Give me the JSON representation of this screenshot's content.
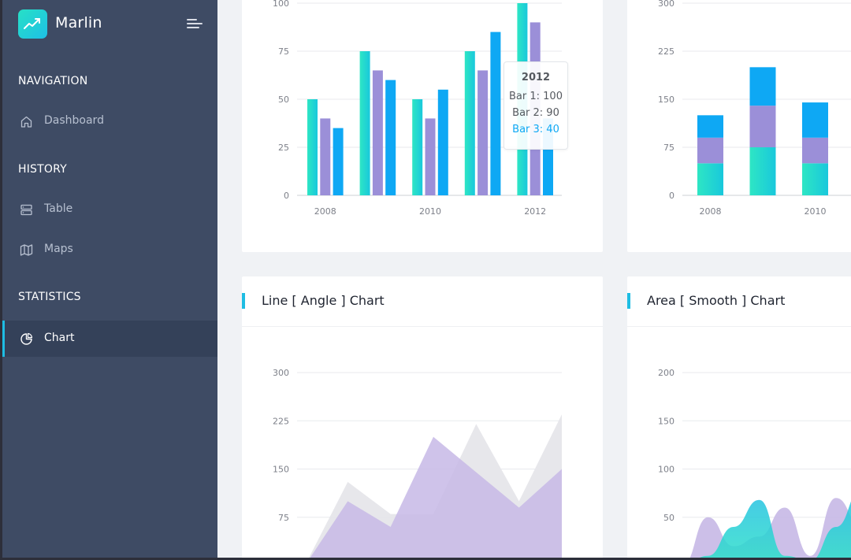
{
  "app": {
    "title": "Marlin"
  },
  "sidebar": {
    "sections": [
      {
        "title": "NAVIGATION",
        "items": [
          {
            "label": "Dashboard",
            "icon": "home-icon"
          }
        ]
      },
      {
        "title": "HISTORY",
        "items": [
          {
            "label": "Table",
            "icon": "table-icon"
          },
          {
            "label": "Maps",
            "icon": "map-icon"
          }
        ]
      },
      {
        "title": "STATISTICS",
        "items": [
          {
            "label": "Chart",
            "icon": "pie-chart-icon",
            "active": true
          }
        ]
      }
    ]
  },
  "colors": {
    "sidebar": "#3e4b64",
    "accent": "#1ebde3",
    "bar1": "#27e0c6",
    "bar2": "#9b8fd8",
    "bar3": "#0ea8f4",
    "purple_area": "#c7b8e6",
    "gray_area": "#e6e6ea"
  },
  "cards": [
    {
      "title": "",
      "type": "grouped-bar"
    },
    {
      "title": "",
      "type": "stacked-bar"
    },
    {
      "title": "Line [ Angle ] Chart",
      "type": "area"
    },
    {
      "title": "Area [ Smooth ] Chart",
      "type": "area"
    }
  ],
  "tooltip": {
    "title": "2012",
    "rows": [
      "Bar 1: 100",
      "Bar 2: 90",
      "Bar 3: 40"
    ]
  },
  "chart_data": [
    {
      "type": "bar",
      "categories": [
        "2008",
        "2009",
        "2010",
        "2011",
        "2012"
      ],
      "x_tick_labels": [
        "2008",
        "2010",
        "2012"
      ],
      "ylim": [
        0,
        100
      ],
      "y_ticks": [
        0,
        25,
        50,
        75,
        100
      ],
      "series": [
        {
          "name": "Bar 1",
          "values": [
            50,
            75,
            50,
            75,
            100
          ]
        },
        {
          "name": "Bar 2",
          "values": [
            40,
            65,
            40,
            65,
            90
          ]
        },
        {
          "name": "Bar 3",
          "values": [
            35,
            60,
            55,
            85,
            40
          ]
        }
      ]
    },
    {
      "type": "bar",
      "stacked": true,
      "categories": [
        "2008",
        "2009",
        "2010",
        "2011"
      ],
      "x_tick_labels": [
        "2008",
        "2010"
      ],
      "ylim": [
        0,
        300
      ],
      "y_ticks": [
        0,
        75,
        150,
        225,
        300
      ],
      "series": [
        {
          "values": [
            50,
            75,
            50,
            0
          ]
        },
        {
          "values": [
            40,
            65,
            40,
            0
          ]
        },
        {
          "values": [
            35,
            60,
            55,
            0
          ]
        }
      ]
    },
    {
      "type": "area",
      "title": "Line [ Angle ] Chart",
      "ylim": [
        0,
        300
      ],
      "y_ticks": [
        75,
        150,
        225,
        300
      ],
      "x": [
        0,
        1,
        2,
        3,
        4,
        5,
        6
      ],
      "series": [
        {
          "values": [
            0,
            130,
            80,
            80,
            220,
            100,
            235
          ]
        },
        {
          "values": [
            0,
            100,
            60,
            200,
            145,
            90,
            150
          ]
        }
      ]
    },
    {
      "type": "area",
      "title": "Area [ Smooth ] Chart",
      "ylim": [
        0,
        200
      ],
      "y_ticks": [
        50,
        100,
        150,
        200
      ],
      "x": [
        0,
        1,
        2,
        3,
        4,
        5,
        6,
        7,
        8
      ],
      "series": [
        {
          "values": [
            0,
            50,
            20,
            30,
            60,
            10,
            70,
            40,
            80
          ]
        },
        {
          "values": [
            0,
            10,
            40,
            68,
            10,
            5,
            40,
            80,
            110
          ]
        }
      ]
    }
  ]
}
